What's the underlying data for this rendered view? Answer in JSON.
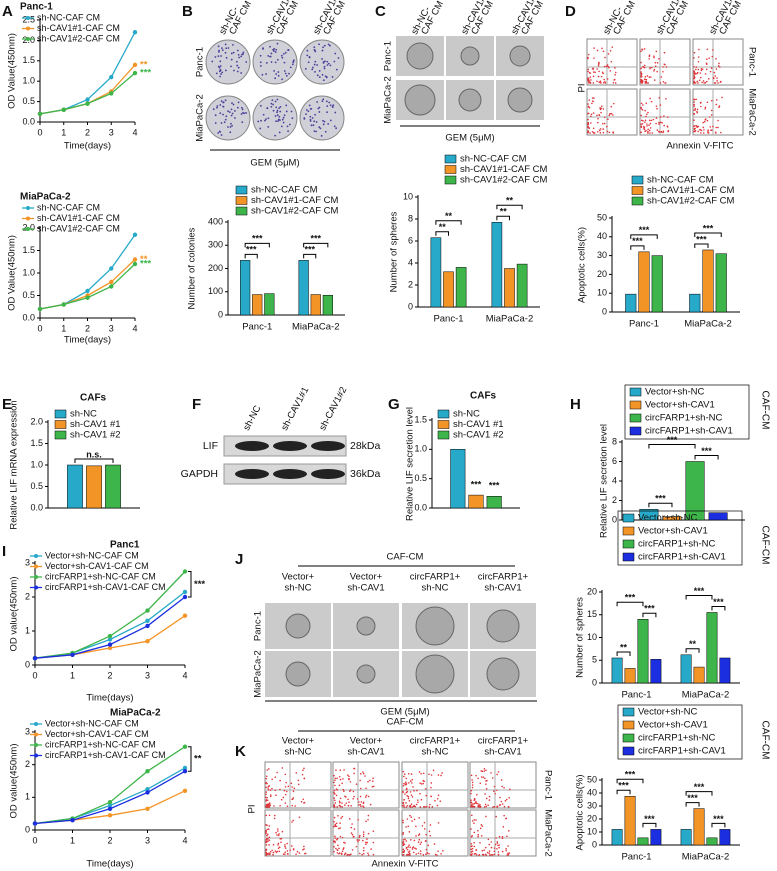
{
  "panel_letters": [
    "A",
    "B",
    "C",
    "D",
    "E",
    "F",
    "G",
    "H",
    "I",
    "J",
    "K"
  ],
  "chart_data": [
    {
      "type": "line",
      "title": "Panc-1",
      "x": [
        0,
        1,
        2,
        3,
        4
      ],
      "xlim": [
        0,
        4
      ],
      "xticks": [
        0,
        1,
        2,
        3,
        4
      ],
      "ylim": [
        0,
        2.5
      ],
      "yticks": [
        {
          "value": 0,
          "label": "0.0"
        },
        0.5,
        {
          "value": 1,
          "label": "1.0"
        },
        1.5,
        {
          "value": 2,
          "label": "2.0"
        },
        2.5
      ],
      "xlabel": "Time(days)",
      "ylabel": "OD Value(450nm)",
      "series": [
        {
          "name": "sh-NC-CAF CM",
          "color": "#27a9c9",
          "values": [
            0.2,
            0.3,
            0.55,
            1.1,
            2.2
          ]
        },
        {
          "name": "sh-CAV1#1-CAF CM",
          "color": "#f39426",
          "values": [
            0.2,
            0.3,
            0.45,
            0.75,
            1.4
          ]
        },
        {
          "name": "sh-CAV1#2-CAF CM",
          "color": "#3db54a",
          "values": [
            0.2,
            0.3,
            0.45,
            0.7,
            1.2
          ]
        }
      ],
      "annotations": [
        "**",
        "***"
      ]
    },
    {
      "type": "line",
      "title": "MiaPaCa-2",
      "x": [
        0,
        1,
        2,
        3,
        4
      ],
      "xlim": [
        0,
        4
      ],
      "xticks": [
        0,
        1,
        2,
        3,
        4
      ],
      "ylim": [
        0,
        2
      ],
      "yticks": [
        {
          "value": 0,
          "label": "0.0"
        },
        0.5,
        {
          "value": 1,
          "label": "1.0"
        },
        1.5,
        {
          "value": 2,
          "label": "2.0"
        }
      ],
      "xlabel": "Time(days)",
      "ylabel": "OD Value(450nm)",
      "series": [
        {
          "name": "sh-NC-CAF CM",
          "color": "#27a9c9",
          "values": [
            0.2,
            0.3,
            0.6,
            1.1,
            1.85
          ]
        },
        {
          "name": "sh-CAV1#1-CAF CM",
          "color": "#f39426",
          "values": [
            0.2,
            0.3,
            0.5,
            0.8,
            1.3
          ]
        },
        {
          "name": "sh-CAV1#2-CAF CM",
          "color": "#3db54a",
          "values": [
            0.2,
            0.3,
            0.45,
            0.7,
            1.2
          ]
        }
      ],
      "annotations": [
        "**",
        "***"
      ]
    },
    {
      "type": "bar",
      "categories": [
        "Panc-1",
        "MiaPaCa-2"
      ],
      "ylabel": "Number of colonies",
      "ylim": [
        0,
        400
      ],
      "yticks": [
        0,
        100,
        200,
        300,
        400
      ],
      "series": [
        {
          "name": "sh-NC-CAF CM",
          "color": "#27a9c9",
          "values": [
            235,
            235
          ]
        },
        {
          "name": "sh-CAV1#1-CAF CM",
          "color": "#f39426",
          "values": [
            88,
            88
          ]
        },
        {
          "name": "sh-CAV1#2-CAF CM",
          "color": "#3db54a",
          "values": [
            92,
            85
          ]
        }
      ],
      "annotations": [
        "***",
        "***",
        "***",
        "***"
      ]
    },
    {
      "type": "bar",
      "categories": [
        "Panc-1",
        "MiaPaCa-2"
      ],
      "ylabel": "Number of spheres",
      "ylim": [
        0,
        10
      ],
      "yticks": [
        0,
        2,
        4,
        6,
        8,
        10
      ],
      "series": [
        {
          "name": "sh-NC-CAF CM",
          "color": "#27a9c9",
          "values": [
            6.3,
            7.7
          ]
        },
        {
          "name": "sh-CAV1#1-CAF CM",
          "color": "#f39426",
          "values": [
            3.2,
            3.5
          ]
        },
        {
          "name": "sh-CAV1#2-CAF CM",
          "color": "#3db54a",
          "values": [
            3.6,
            3.9
          ]
        }
      ],
      "annotations": [
        "**",
        "**",
        "**",
        "**"
      ]
    },
    {
      "type": "bar",
      "categories": [
        "Panc-1",
        "MiaPaCa-2"
      ],
      "ylabel": "Apoptotic cells(%)",
      "ylim": [
        0,
        50
      ],
      "yticks": [
        0,
        10,
        20,
        30,
        40,
        50
      ],
      "series": [
        {
          "name": "sh-NC-CAF CM",
          "color": "#27a9c9",
          "values": [
            9.5,
            9.5
          ]
        },
        {
          "name": "sh-CAV1#1-CAF CM",
          "color": "#f39426",
          "values": [
            32,
            33
          ]
        },
        {
          "name": "sh-CAV1#2-CAF CM",
          "color": "#3db54a",
          "values": [
            30,
            31
          ]
        }
      ],
      "annotations": [
        "***",
        "***",
        "***",
        "***"
      ]
    },
    {
      "type": "bar",
      "title": "CAFs",
      "categories": [
        null
      ],
      "ylabel": "Relative LIF mRNA expression",
      "ylim": [
        0,
        2
      ],
      "yticks": [
        {
          "value": 0,
          "label": "0.0"
        },
        0.5,
        {
          "value": 1,
          "label": "1.0"
        },
        1.5,
        {
          "value": 2,
          "label": "2.0"
        }
      ],
      "series": [
        {
          "name": "sh-NC",
          "color": "#27a9c9",
          "values": [
            1.0
          ]
        },
        {
          "name": "sh-CAV1 #1",
          "color": "#f39426",
          "values": [
            0.98
          ]
        },
        {
          "name": "sh-CAV1 #2",
          "color": "#3db54a",
          "values": [
            1.0
          ]
        }
      ],
      "annotations": [
        "n.s."
      ]
    },
    {
      "type": "bar",
      "title": "CAFs",
      "categories": [
        null
      ],
      "ylabel": "Relative LIF secretion level",
      "ylim": [
        0,
        1.5
      ],
      "yticks": [
        {
          "value": 0,
          "label": "0.0"
        },
        0.5,
        {
          "value": 1,
          "label": "1.0"
        },
        1.5
      ],
      "series": [
        {
          "name": "sh-NC",
          "color": "#27a9c9",
          "values": [
            1.0
          ]
        },
        {
          "name": "sh-CAV1 #1",
          "color": "#f39426",
          "values": [
            0.22
          ]
        },
        {
          "name": "sh-CAV1 #2",
          "color": "#3db54a",
          "values": [
            0.2
          ]
        }
      ],
      "annotations": [
        "***",
        "***"
      ]
    },
    {
      "type": "bar",
      "categories": [
        null
      ],
      "ylabel": "Relative LIF secretion level",
      "side_label": "CAF-CM",
      "ylim": [
        0,
        8
      ],
      "yticks": [
        0,
        2,
        4,
        6,
        8
      ],
      "series": [
        {
          "name": "Vector+sh-NC",
          "color": "#27a9c9",
          "values": [
            1.1
          ]
        },
        {
          "name": "Vector+sh-CAV1",
          "color": "#f39426",
          "values": [
            0.35
          ]
        },
        {
          "name": "circFARP1+sh-NC",
          "color": "#3db54a",
          "values": [
            6.0
          ]
        },
        {
          "name": "circFARP1+sh-CAV1",
          "color": "#1b2ee0",
          "values": [
            0.75
          ]
        }
      ],
      "annotations": [
        "***",
        "***",
        "***"
      ]
    },
    {
      "type": "line",
      "title": "Panc1",
      "x": [
        0,
        1,
        2,
        3,
        4
      ],
      "xlim": [
        0,
        4
      ],
      "xticks": [
        0,
        1,
        2,
        3,
        4
      ],
      "ylim": [
        0,
        3
      ],
      "yticks": [
        0,
        1,
        2,
        3
      ],
      "xlabel": "Time(days)",
      "ylabel": "OD value(450nm)",
      "series": [
        {
          "name": "Vector+sh-NC-CAF CM",
          "color": "#27a9c9",
          "values": [
            0.2,
            0.35,
            0.75,
            1.3,
            2.15
          ]
        },
        {
          "name": "Vector+sh-CAV1-CAF CM",
          "color": "#f39426",
          "values": [
            0.2,
            0.3,
            0.5,
            0.7,
            1.45
          ]
        },
        {
          "name": "circFARP1+sh-NC-CAF CM",
          "color": "#3db54a",
          "values": [
            0.2,
            0.35,
            0.85,
            1.6,
            2.75
          ]
        },
        {
          "name": "circFARP1+sh-CAV1-CAF CM",
          "color": "#1b2ee0",
          "values": [
            0.2,
            0.3,
            0.6,
            1.15,
            2.0
          ]
        }
      ],
      "annotations": [
        "***"
      ]
    },
    {
      "type": "line",
      "title": "MiaPaCa-2",
      "x": [
        0,
        1,
        2,
        3,
        4
      ],
      "xlim": [
        0,
        4
      ],
      "xticks": [
        0,
        1,
        2,
        3,
        4
      ],
      "ylim": [
        0,
        3
      ],
      "yticks": [
        0,
        1,
        2,
        3
      ],
      "xlabel": "Time(days)",
      "ylabel": "OD value(450nm)",
      "series": [
        {
          "name": "Vector+sh-NC-CAF CM",
          "color": "#27a9c9",
          "values": [
            0.2,
            0.35,
            0.75,
            1.25,
            1.9
          ]
        },
        {
          "name": "Vector+sh-CAV1-CAF CM",
          "color": "#f39426",
          "values": [
            0.2,
            0.3,
            0.45,
            0.65,
            1.2
          ]
        },
        {
          "name": "circFARP1+sh-NC-CAF CM",
          "color": "#3db54a",
          "values": [
            0.2,
            0.35,
            0.85,
            1.8,
            2.55
          ]
        },
        {
          "name": "circFARP1+sh-CAV1-CAF CM",
          "color": "#1b2ee0",
          "values": [
            0.2,
            0.3,
            0.65,
            1.15,
            1.8
          ]
        }
      ],
      "annotations": [
        "**"
      ]
    },
    {
      "type": "bar",
      "categories": [
        "Panc-1",
        "MiaPaCa-2"
      ],
      "ylabel": "Number of spheres",
      "side_label": "CAF-CM",
      "ylim": [
        0,
        20
      ],
      "yticks": [
        0,
        5,
        10,
        15,
        20
      ],
      "series": [
        {
          "name": "Vector+sh-NC",
          "color": "#27a9c9",
          "values": [
            5.5,
            6.2
          ]
        },
        {
          "name": "Vector+sh-CAV1",
          "color": "#f39426",
          "values": [
            3.2,
            3.5
          ]
        },
        {
          "name": "circFARP1+sh-NC",
          "color": "#3db54a",
          "values": [
            14,
            15.5
          ]
        },
        {
          "name": "circFARP1+sh-CAV1",
          "color": "#1b2ee0",
          "values": [
            5.2,
            5.5
          ]
        }
      ],
      "annotations": [
        "**",
        "***",
        "***",
        "**",
        "***",
        "***"
      ]
    },
    {
      "type": "bar",
      "categories": [
        "Panc-1",
        "MiaPaCa-2"
      ],
      "ylabel": "Apoptotic cells(%)",
      "side_label": "CAF-CM",
      "ylim": [
        0,
        50
      ],
      "yticks": [
        0,
        10,
        20,
        30,
        40,
        50
      ],
      "series": [
        {
          "name": "Vector+sh-NC",
          "color": "#27a9c9",
          "values": [
            12,
            12
          ]
        },
        {
          "name": "Vector+sh-CAV1",
          "color": "#f39426",
          "values": [
            37.5,
            28
          ]
        },
        {
          "name": "circFARP1+sh-NC",
          "color": "#3db54a",
          "values": [
            5.5,
            5.5
          ]
        },
        {
          "name": "circFARP1+sh-CAV1",
          "color": "#1b2ee0",
          "values": [
            12,
            12
          ]
        }
      ],
      "annotations": [
        "***",
        "***",
        "***",
        "***",
        "***",
        "***"
      ]
    }
  ],
  "image_panels": {
    "B": {
      "columns": [
        [
          "sh-NC-",
          "CAF CM"
        ],
        [
          "sh-CAV1#1-",
          "CAF CM"
        ],
        [
          "sh-CAV1#2-",
          "CAF CM"
        ]
      ],
      "rows": [
        "Panc-1",
        "MiaPaCa-2"
      ],
      "treatment": "GEM (5μM)"
    },
    "C": {
      "columns": [
        [
          "sh-NC-",
          "CAF CM"
        ],
        [
          "sh-CAV1#1-",
          "CAF CM"
        ],
        [
          "sh-CAV1#2-",
          "CAF CM"
        ]
      ],
      "rows": [
        "Panc-1",
        "MiaPaCa-2"
      ],
      "treatment": "GEM (5μM)"
    },
    "D": {
      "columns": [
        [
          "sh-NC-",
          "CAF CM"
        ],
        [
          "sh-CAV1#1-",
          "CAF CM"
        ],
        [
          "sh-CAV1#2-",
          "CAF CM"
        ]
      ],
      "rows": [
        "Panc-1",
        "MiaPaCa-2"
      ],
      "y_axis": "PI",
      "x_axis": "Annexin V-FITC"
    },
    "F": {
      "columns": [
        "sh-NC",
        "sh-CAV1#1",
        "sh-CAV1#2"
      ],
      "rows": [
        "LIF",
        "GAPDH"
      ],
      "sizes": [
        "28kDa",
        "36kDa"
      ]
    },
    "J": {
      "header": "CAF-CM",
      "columns": [
        [
          "Vector+",
          "sh-NC"
        ],
        [
          "Vector+",
          "sh-CAV1"
        ],
        [
          "circFARP1+",
          "sh-NC"
        ],
        [
          "circFARP1+",
          "sh-CAV1"
        ]
      ],
      "rows": [
        "Panc-1",
        "MiaPaCa-2"
      ],
      "treatment": "GEM (5μM)"
    },
    "K": {
      "header": "CAF-CM",
      "columns": [
        [
          "Vector+",
          "sh-NC"
        ],
        [
          "Vector+",
          "sh-CAV1"
        ],
        [
          "circFARP1+",
          "sh-NC"
        ],
        [
          "circFARP1+",
          "sh-CAV1"
        ]
      ],
      "rows": [
        "Panc-1",
        "MiaPaCa-2"
      ],
      "y_axis": "PI",
      "x_axis": "Annexin V-FITC"
    }
  }
}
